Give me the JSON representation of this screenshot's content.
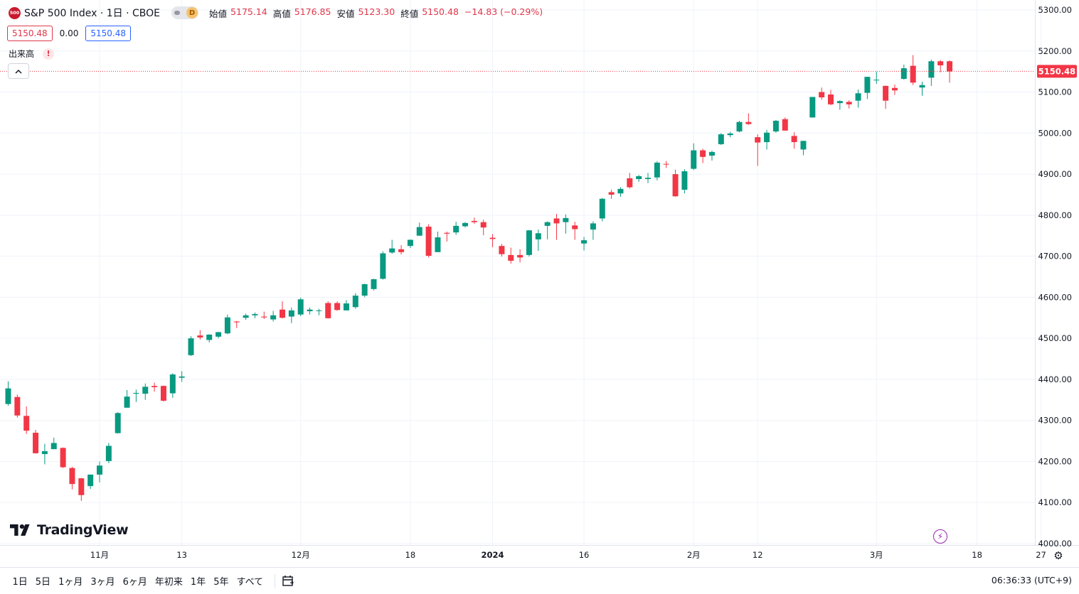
{
  "header": {
    "logo_text": "500",
    "symbol": "S&P 500 Index · 1日 · CBOE",
    "pill_label": "D",
    "ohlc": [
      {
        "label": "始値",
        "value": "5175.14"
      },
      {
        "label": "高値",
        "value": "5176.85"
      },
      {
        "label": "安値",
        "value": "5123.30"
      },
      {
        "label": "終値",
        "value": "5150.48"
      }
    ],
    "change": "−14.83 (−0.29%)"
  },
  "quote": {
    "bid": "5150.48",
    "spread": "0.00",
    "ask": "5150.48"
  },
  "volume": {
    "label": "出来高",
    "warn": "!"
  },
  "collapse_icon": "^",
  "branding": {
    "name": "TradingView"
  },
  "footer": {
    "ranges": [
      "1日",
      "5日",
      "1ヶ月",
      "3ヶ月",
      "6ヶ月",
      "年初来",
      "1年",
      "5年",
      "すべて"
    ],
    "clock": "06:36:33 (UTC+9)"
  },
  "colors": {
    "up": "#089981",
    "down": "#f23645",
    "accent": "#2962ff",
    "grid": "#f0f3fa"
  },
  "chart_data": {
    "type": "candlestick",
    "title": "S&P 500 Index · 1日 · CBOE",
    "ylim": [
      4000,
      5300
    ],
    "y_ticks": [
      "5300.00",
      "5200.00",
      "5100.00",
      "5000.00",
      "4900.00",
      "4800.00",
      "4700.00",
      "4600.00",
      "4500.00",
      "4400.00",
      "4300.00",
      "4200.00",
      "4100.00",
      "4000.00"
    ],
    "x_ticks": [
      {
        "index": 10,
        "label": "11月",
        "bold": false
      },
      {
        "index": 19,
        "label": "13",
        "bold": false
      },
      {
        "index": 32,
        "label": "12月",
        "bold": false
      },
      {
        "index": 44,
        "label": "18",
        "bold": false
      },
      {
        "index": 53,
        "label": "2024",
        "bold": true
      },
      {
        "index": 63,
        "label": "16",
        "bold": false
      },
      {
        "index": 75,
        "label": "2月",
        "bold": false
      },
      {
        "index": 82,
        "label": "12",
        "bold": false
      },
      {
        "index": 95,
        "label": "3月",
        "bold": false
      },
      {
        "index": 106,
        "label": "18",
        "bold": false
      },
      {
        "index": 113,
        "label": "27",
        "bold": false
      }
    ],
    "last_price": "5150.48",
    "candles": [
      {
        "o": 4340,
        "h": 4395,
        "l": 4336,
        "c": 4378
      },
      {
        "o": 4357,
        "h": 4363,
        "l": 4307,
        "c": 4312
      },
      {
        "o": 4311,
        "h": 4334,
        "l": 4267,
        "c": 4275
      },
      {
        "o": 4270,
        "h": 4277,
        "l": 4219,
        "c": 4220
      },
      {
        "o": 4218,
        "h": 4243,
        "l": 4193,
        "c": 4225
      },
      {
        "o": 4230,
        "h": 4258,
        "l": 4230,
        "c": 4245
      },
      {
        "o": 4233,
        "h": 4234,
        "l": 4184,
        "c": 4186
      },
      {
        "o": 4184,
        "h": 4187,
        "l": 4132,
        "c": 4145
      },
      {
        "o": 4159,
        "h": 4160,
        "l": 4104,
        "c": 4118
      },
      {
        "o": 4140,
        "h": 4168,
        "l": 4133,
        "c": 4168
      },
      {
        "o": 4168,
        "h": 4200,
        "l": 4149,
        "c": 4190
      },
      {
        "o": 4201,
        "h": 4245,
        "l": 4196,
        "c": 4238
      },
      {
        "o": 4269,
        "h": 4320,
        "l": 4268,
        "c": 4318
      },
      {
        "o": 4331,
        "h": 4374,
        "l": 4331,
        "c": 4358
      },
      {
        "o": 4365,
        "h": 4375,
        "l": 4345,
        "c": 4367
      },
      {
        "o": 4365,
        "h": 4390,
        "l": 4350,
        "c": 4382
      },
      {
        "o": 4384,
        "h": 4392,
        "l": 4370,
        "c": 4381
      },
      {
        "o": 4384,
        "h": 4385,
        "l": 4346,
        "c": 4348
      },
      {
        "o": 4366,
        "h": 4415,
        "l": 4355,
        "c": 4412
      },
      {
        "o": 4404,
        "h": 4420,
        "l": 4394,
        "c": 4407
      },
      {
        "o": 4459,
        "h": 4505,
        "l": 4457,
        "c": 4500
      },
      {
        "o": 4507,
        "h": 4520,
        "l": 4497,
        "c": 4502
      },
      {
        "o": 4496,
        "h": 4510,
        "l": 4490,
        "c": 4509
      },
      {
        "o": 4504,
        "h": 4516,
        "l": 4500,
        "c": 4515
      },
      {
        "o": 4512,
        "h": 4558,
        "l": 4510,
        "c": 4551
      },
      {
        "o": 4541,
        "h": 4542,
        "l": 4525,
        "c": 4539
      },
      {
        "o": 4550,
        "h": 4560,
        "l": 4545,
        "c": 4556
      },
      {
        "o": 4556,
        "h": 4563,
        "l": 4549,
        "c": 4559
      },
      {
        "o": 4553,
        "h": 4565,
        "l": 4547,
        "c": 4551
      },
      {
        "o": 4546,
        "h": 4567,
        "l": 4541,
        "c": 4556
      },
      {
        "o": 4570,
        "h": 4590,
        "l": 4548,
        "c": 4550
      },
      {
        "o": 4553,
        "h": 4575,
        "l": 4537,
        "c": 4568
      },
      {
        "o": 4558,
        "h": 4599,
        "l": 4554,
        "c": 4595
      },
      {
        "o": 4566,
        "h": 4575,
        "l": 4558,
        "c": 4570
      },
      {
        "o": 4568,
        "h": 4572,
        "l": 4556,
        "c": 4568
      },
      {
        "o": 4586,
        "h": 4590,
        "l": 4548,
        "c": 4549
      },
      {
        "o": 4586,
        "h": 4590,
        "l": 4567,
        "c": 4569
      },
      {
        "o": 4568,
        "h": 4593,
        "l": 4568,
        "c": 4585
      },
      {
        "o": 4576,
        "h": 4610,
        "l": 4572,
        "c": 4604
      },
      {
        "o": 4604,
        "h": 4633,
        "l": 4600,
        "c": 4632
      },
      {
        "o": 4620,
        "h": 4645,
        "l": 4617,
        "c": 4644
      },
      {
        "o": 4645,
        "h": 4712,
        "l": 4643,
        "c": 4707
      },
      {
        "o": 4709,
        "h": 4740,
        "l": 4706,
        "c": 4719
      },
      {
        "o": 4717,
        "h": 4727,
        "l": 4704,
        "c": 4710
      },
      {
        "o": 4725,
        "h": 4741,
        "l": 4720,
        "c": 4740
      },
      {
        "o": 4750,
        "h": 4782,
        "l": 4750,
        "c": 4771
      },
      {
        "o": 4772,
        "h": 4778,
        "l": 4697,
        "c": 4701
      },
      {
        "o": 4710,
        "h": 4760,
        "l": 4710,
        "c": 4746
      },
      {
        "o": 4757,
        "h": 4760,
        "l": 4736,
        "c": 4755
      },
      {
        "o": 4758,
        "h": 4784,
        "l": 4752,
        "c": 4774
      },
      {
        "o": 4773,
        "h": 4783,
        "l": 4770,
        "c": 4781
      },
      {
        "o": 4786,
        "h": 4794,
        "l": 4779,
        "c": 4783
      },
      {
        "o": 4783,
        "h": 4789,
        "l": 4751,
        "c": 4770
      },
      {
        "o": 4745,
        "h": 4754,
        "l": 4722,
        "c": 4742
      },
      {
        "o": 4725,
        "h": 4730,
        "l": 4699,
        "c": 4705
      },
      {
        "o": 4703,
        "h": 4721,
        "l": 4682,
        "c": 4689
      },
      {
        "o": 4703,
        "h": 4717,
        "l": 4685,
        "c": 4697
      },
      {
        "o": 4703,
        "h": 4764,
        "l": 4699,
        "c": 4763
      },
      {
        "o": 4741,
        "h": 4765,
        "l": 4713,
        "c": 4756
      },
      {
        "o": 4774,
        "h": 4785,
        "l": 4741,
        "c": 4783
      },
      {
        "o": 4792,
        "h": 4803,
        "l": 4740,
        "c": 4780
      },
      {
        "o": 4783,
        "h": 4802,
        "l": 4755,
        "c": 4793
      },
      {
        "o": 4775,
        "h": 4784,
        "l": 4740,
        "c": 4766
      },
      {
        "o": 4731,
        "h": 4747,
        "l": 4714,
        "c": 4739
      },
      {
        "o": 4765,
        "h": 4785,
        "l": 4740,
        "c": 4780
      },
      {
        "o": 4792,
        "h": 4842,
        "l": 4785,
        "c": 4840
      },
      {
        "o": 4856,
        "h": 4862,
        "l": 4840,
        "c": 4850
      },
      {
        "o": 4853,
        "h": 4868,
        "l": 4845,
        "c": 4864
      },
      {
        "o": 4890,
        "h": 4903,
        "l": 4865,
        "c": 4868
      },
      {
        "o": 4888,
        "h": 4898,
        "l": 4881,
        "c": 4895
      },
      {
        "o": 4888,
        "h": 4903,
        "l": 4878,
        "c": 4891
      },
      {
        "o": 4892,
        "h": 4931,
        "l": 4885,
        "c": 4928
      },
      {
        "o": 4925,
        "h": 4932,
        "l": 4915,
        "c": 4924
      },
      {
        "o": 4900,
        "h": 4911,
        "l": 4845,
        "c": 4846
      },
      {
        "o": 4862,
        "h": 4912,
        "l": 4853,
        "c": 4907
      },
      {
        "o": 4913,
        "h": 4975,
        "l": 4910,
        "c": 4958
      },
      {
        "o": 4958,
        "h": 4962,
        "l": 4927,
        "c": 4942
      },
      {
        "o": 4945,
        "h": 4957,
        "l": 4933,
        "c": 4954
      },
      {
        "o": 4973,
        "h": 5000,
        "l": 4971,
        "c": 4997
      },
      {
        "o": 4995,
        "h": 5003,
        "l": 4990,
        "c": 4999
      },
      {
        "o": 5004,
        "h": 5030,
        "l": 5002,
        "c": 5027
      },
      {
        "o": 5027,
        "h": 5048,
        "l": 5020,
        "c": 5022
      },
      {
        "o": 4990,
        "h": 4997,
        "l": 4920,
        "c": 4977
      },
      {
        "o": 4978,
        "h": 5008,
        "l": 4960,
        "c": 5001
      },
      {
        "o": 5004,
        "h": 5032,
        "l": 5001,
        "c": 5030
      },
      {
        "o": 5034,
        "h": 5038,
        "l": 5012,
        "c": 5006
      },
      {
        "o": 4993,
        "h": 5002,
        "l": 4962,
        "c": 4978
      },
      {
        "o": 4960,
        "h": 4981,
        "l": 4946,
        "c": 4981
      },
      {
        "o": 5038,
        "h": 5088,
        "l": 5038,
        "c": 5088
      },
      {
        "o": 5100,
        "h": 5111,
        "l": 5081,
        "c": 5087
      },
      {
        "o": 5094,
        "h": 5105,
        "l": 5068,
        "c": 5070
      },
      {
        "o": 5073,
        "h": 5080,
        "l": 5057,
        "c": 5078
      },
      {
        "o": 5076,
        "h": 5080,
        "l": 5060,
        "c": 5070
      },
      {
        "o": 5079,
        "h": 5106,
        "l": 5062,
        "c": 5097
      },
      {
        "o": 5098,
        "h": 5137,
        "l": 5083,
        "c": 5137
      },
      {
        "o": 5130,
        "h": 5150,
        "l": 5120,
        "c": 5130
      },
      {
        "o": 5115,
        "h": 5116,
        "l": 5059,
        "c": 5079
      },
      {
        "o": 5110,
        "h": 5118,
        "l": 5093,
        "c": 5104
      },
      {
        "o": 5132,
        "h": 5167,
        "l": 5130,
        "c": 5158
      },
      {
        "o": 5164,
        "h": 5190,
        "l": 5117,
        "c": 5123
      },
      {
        "o": 5111,
        "h": 5125,
        "l": 5091,
        "c": 5117
      },
      {
        "o": 5135,
        "h": 5179,
        "l": 5115,
        "c": 5175
      },
      {
        "o": 5175,
        "h": 5178,
        "l": 5148,
        "c": 5165
      },
      {
        "o": 5175,
        "h": 5177,
        "l": 5123,
        "c": 5150
      }
    ]
  }
}
